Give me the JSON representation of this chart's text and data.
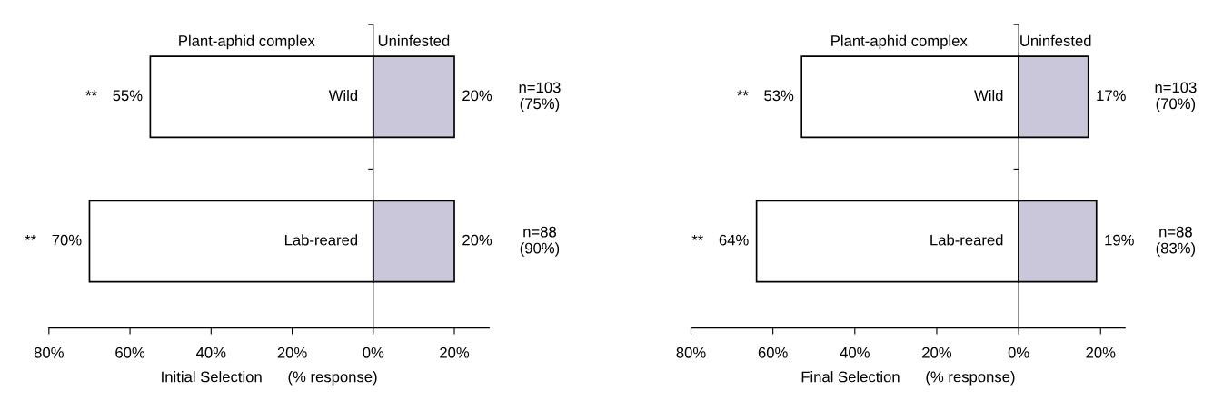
{
  "chart_data": [
    {
      "type": "bar",
      "orientation": "horizontal",
      "categories": [
        "Wild",
        "Lab-reared"
      ],
      "xlabel": "Initial Selection      (% response)",
      "series": [
        {
          "name": "Plant-aphid complex",
          "color": "#ffffff",
          "base": [
            -55,
            -70
          ],
          "values": [
            55,
            70
          ],
          "value_labels": [
            "55%",
            "70%"
          ]
        },
        {
          "name": "Uninfested",
          "color": "#c9c7d9",
          "values": [
            20,
            20
          ],
          "value_labels": [
            "20%",
            "20%"
          ]
        }
      ],
      "xlim": [
        -80,
        28.6
      ],
      "xticks": [
        {
          "value": -80,
          "label": "80%"
        },
        {
          "value": -60,
          "label": "60%"
        },
        {
          "value": -40,
          "label": "40%"
        },
        {
          "value": -20,
          "label": "20%"
        },
        {
          "value": 0,
          "label": "0%"
        },
        {
          "value": 20,
          "label": "20%"
        }
      ],
      "annotations": [
        "**",
        "**",
        "n=103\n(75%)",
        "n=88\n(90%)"
      ],
      "grid": false,
      "legend": false
    },
    {
      "type": "bar",
      "orientation": "horizontal",
      "categories": [
        "Wild",
        "Lab-reared"
      ],
      "xlabel": "Final Selection      (% response)",
      "series": [
        {
          "name": "Plant-aphid complex",
          "color": "#ffffff",
          "base": [
            -53,
            -64
          ],
          "values": [
            53,
            64
          ],
          "value_labels": [
            "53%",
            "64%"
          ]
        },
        {
          "name": "Uninfested",
          "color": "#c9c7d9",
          "values": [
            17,
            19
          ],
          "value_labels": [
            "17%",
            "19%"
          ]
        }
      ],
      "xlim": [
        -80,
        26
      ],
      "xticks": [
        {
          "value": -80,
          "label": "80%"
        },
        {
          "value": -60,
          "label": "60%"
        },
        {
          "value": -40,
          "label": "40%"
        },
        {
          "value": -20,
          "label": "20%"
        },
        {
          "value": 0,
          "label": "0%"
        },
        {
          "value": 20,
          "label": "20%"
        }
      ],
      "annotations": [
        "**",
        "**",
        "n=103\n(70%)",
        "n=88\n(83%)"
      ],
      "grid": false,
      "legend": false
    }
  ]
}
